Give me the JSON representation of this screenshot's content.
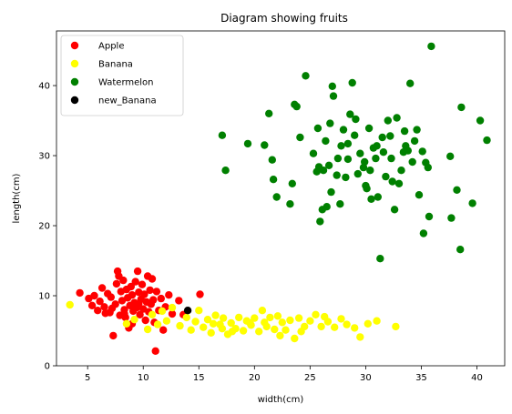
{
  "chart_data": {
    "type": "scatter",
    "title": "Diagram showing fruits",
    "xlabel": "width(cm)",
    "ylabel": "length(cm)",
    "xlim": [
      2.2,
      42.5
    ],
    "ylim": [
      0,
      47.8
    ],
    "xticks": [
      5,
      10,
      15,
      20,
      25,
      30,
      35,
      40
    ],
    "yticks": [
      0,
      10,
      20,
      30,
      40
    ],
    "grid": false,
    "legend_position": "top-left",
    "series": [
      {
        "name": "Apple",
        "color": "#ff0000",
        "points": [
          [
            4.3,
            10.4
          ],
          [
            5.1,
            9.6
          ],
          [
            5.4,
            8.6
          ],
          [
            5.6,
            10.0
          ],
          [
            5.9,
            7.9
          ],
          [
            6.1,
            9.2
          ],
          [
            6.3,
            11.1
          ],
          [
            6.5,
            8.4
          ],
          [
            6.8,
            10.3
          ],
          [
            7.0,
            7.6
          ],
          [
            7.1,
            9.8
          ],
          [
            7.3,
            4.3
          ],
          [
            7.5,
            8.8
          ],
          [
            7.6,
            11.7
          ],
          [
            7.7,
            13.5
          ],
          [
            7.8,
            12.8
          ],
          [
            7.9,
            7.2
          ],
          [
            8.0,
            10.6
          ],
          [
            8.1,
            9.3
          ],
          [
            8.2,
            12.2
          ],
          [
            8.3,
            8.0
          ],
          [
            8.4,
            6.9
          ],
          [
            8.5,
            10.9
          ],
          [
            8.6,
            9.7
          ],
          [
            8.7,
            5.4
          ],
          [
            8.8,
            8.6
          ],
          [
            8.9,
            11.3
          ],
          [
            9.0,
            10.1
          ],
          [
            9.1,
            7.8
          ],
          [
            9.2,
            9.0
          ],
          [
            9.3,
            12.0
          ],
          [
            9.4,
            8.3
          ],
          [
            9.5,
            13.5
          ],
          [
            9.6,
            10.5
          ],
          [
            9.7,
            7.3
          ],
          [
            9.8,
            9.5
          ],
          [
            9.9,
            11.6
          ],
          [
            10.0,
            8.1
          ],
          [
            10.1,
            10.2
          ],
          [
            10.2,
            6.5
          ],
          [
            10.3,
            9.1
          ],
          [
            10.4,
            12.8
          ],
          [
            10.5,
            7.7
          ],
          [
            10.6,
            10.8
          ],
          [
            10.7,
            8.8
          ],
          [
            10.8,
            12.4
          ],
          [
            10.9,
            9.4
          ],
          [
            11.0,
            6.2
          ],
          [
            11.1,
            2.1
          ],
          [
            11.2,
            10.6
          ],
          [
            11.4,
            7.9
          ],
          [
            11.6,
            9.6
          ],
          [
            11.8,
            5.1
          ],
          [
            12.0,
            8.4
          ],
          [
            12.3,
            10.1
          ],
          [
            12.6,
            7.4
          ],
          [
            13.2,
            9.3
          ],
          [
            13.6,
            7.3
          ],
          [
            15.1,
            10.2
          ],
          [
            9.0,
            6.0
          ],
          [
            8.3,
            7.4
          ],
          [
            6.6,
            7.5
          ],
          [
            7.2,
            8.2
          ],
          [
            9.6,
            8.9
          ]
        ]
      },
      {
        "name": "Banana",
        "color": "#ffff00",
        "points": [
          [
            3.4,
            8.7
          ],
          [
            8.5,
            6.0
          ],
          [
            9.2,
            6.6
          ],
          [
            10.4,
            5.2
          ],
          [
            10.8,
            7.3
          ],
          [
            11.3,
            5.9
          ],
          [
            11.7,
            7.8
          ],
          [
            12.1,
            6.4
          ],
          [
            12.6,
            8.3
          ],
          [
            13.3,
            5.7
          ],
          [
            13.9,
            6.9
          ],
          [
            14.3,
            5.1
          ],
          [
            14.7,
            6.3
          ],
          [
            15.0,
            7.9
          ],
          [
            15.4,
            5.5
          ],
          [
            15.8,
            6.6
          ],
          [
            16.1,
            4.7
          ],
          [
            16.5,
            7.2
          ],
          [
            16.9,
            5.9
          ],
          [
            17.2,
            6.8
          ],
          [
            17.6,
            4.5
          ],
          [
            17.9,
            6.1
          ],
          [
            18.3,
            5.3
          ],
          [
            18.6,
            6.9
          ],
          [
            19.0,
            5.0
          ],
          [
            19.3,
            6.4
          ],
          [
            19.7,
            5.8
          ],
          [
            20.0,
            6.8
          ],
          [
            20.4,
            4.9
          ],
          [
            20.7,
            7.9
          ],
          [
            21.1,
            5.6
          ],
          [
            21.4,
            6.9
          ],
          [
            21.8,
            5.2
          ],
          [
            22.1,
            7.1
          ],
          [
            22.5,
            6.2
          ],
          [
            22.8,
            5.1
          ],
          [
            23.2,
            6.5
          ],
          [
            23.6,
            3.9
          ],
          [
            24.0,
            6.8
          ],
          [
            24.5,
            5.6
          ],
          [
            25.0,
            6.4
          ],
          [
            25.5,
            7.3
          ],
          [
            26.0,
            5.6
          ],
          [
            26.6,
            6.3
          ],
          [
            27.2,
            5.5
          ],
          [
            27.8,
            6.7
          ],
          [
            28.3,
            5.9
          ],
          [
            29.0,
            5.4
          ],
          [
            29.5,
            4.1
          ],
          [
            30.2,
            6.0
          ],
          [
            31.0,
            6.4
          ],
          [
            32.7,
            5.6
          ],
          [
            22.3,
            4.3
          ],
          [
            19.6,
            6.1
          ],
          [
            17.1,
            5.3
          ],
          [
            16.3,
            6.0
          ],
          [
            18.0,
            4.9
          ],
          [
            20.9,
            6.2
          ],
          [
            24.2,
            4.9
          ],
          [
            26.3,
            7.0
          ]
        ]
      },
      {
        "name": "Watermelon",
        "color": "#008000",
        "points": [
          [
            17.1,
            32.9
          ],
          [
            17.4,
            27.9
          ],
          [
            19.4,
            31.7
          ],
          [
            20.9,
            31.5
          ],
          [
            21.3,
            36.0
          ],
          [
            21.6,
            29.4
          ],
          [
            21.7,
            26.6
          ],
          [
            22.0,
            24.1
          ],
          [
            23.2,
            23.1
          ],
          [
            23.4,
            26.0
          ],
          [
            23.6,
            37.3
          ],
          [
            23.8,
            37.0
          ],
          [
            24.1,
            32.6
          ],
          [
            24.6,
            41.4
          ],
          [
            25.3,
            30.3
          ],
          [
            25.6,
            27.7
          ],
          [
            25.8,
            28.4
          ],
          [
            25.9,
            20.6
          ],
          [
            26.1,
            22.3
          ],
          [
            26.2,
            27.9
          ],
          [
            26.4,
            32.1
          ],
          [
            26.5,
            22.7
          ],
          [
            26.8,
            34.6
          ],
          [
            26.9,
            24.8
          ],
          [
            27.0,
            39.9
          ],
          [
            27.1,
            38.5
          ],
          [
            27.4,
            27.2
          ],
          [
            27.5,
            29.6
          ],
          [
            27.7,
            23.1
          ],
          [
            27.8,
            31.4
          ],
          [
            28.0,
            33.7
          ],
          [
            28.2,
            26.9
          ],
          [
            28.4,
            29.5
          ],
          [
            28.6,
            35.9
          ],
          [
            28.8,
            40.4
          ],
          [
            29.0,
            32.9
          ],
          [
            29.1,
            35.2
          ],
          [
            29.3,
            27.4
          ],
          [
            29.5,
            30.3
          ],
          [
            29.8,
            28.3
          ],
          [
            30.0,
            25.7
          ],
          [
            30.1,
            25.3
          ],
          [
            30.3,
            33.9
          ],
          [
            30.4,
            27.9
          ],
          [
            30.5,
            23.8
          ],
          [
            30.7,
            31.1
          ],
          [
            30.9,
            29.6
          ],
          [
            31.0,
            31.4
          ],
          [
            31.1,
            24.1
          ],
          [
            31.3,
            15.3
          ],
          [
            31.5,
            32.6
          ],
          [
            31.6,
            30.5
          ],
          [
            31.8,
            27.0
          ],
          [
            32.0,
            35.0
          ],
          [
            32.2,
            32.8
          ],
          [
            32.4,
            26.3
          ],
          [
            32.6,
            22.3
          ],
          [
            32.8,
            35.4
          ],
          [
            33.0,
            26.0
          ],
          [
            33.2,
            27.9
          ],
          [
            33.4,
            30.5
          ],
          [
            33.6,
            31.4
          ],
          [
            33.8,
            30.7
          ],
          [
            34.0,
            40.3
          ],
          [
            34.2,
            29.1
          ],
          [
            34.4,
            32.1
          ],
          [
            34.6,
            33.7
          ],
          [
            34.8,
            24.4
          ],
          [
            35.1,
            30.6
          ],
          [
            35.2,
            18.9
          ],
          [
            35.4,
            29.0
          ],
          [
            35.6,
            28.3
          ],
          [
            35.7,
            21.3
          ],
          [
            35.9,
            45.6
          ],
          [
            37.6,
            29.9
          ],
          [
            37.7,
            21.1
          ],
          [
            38.2,
            25.1
          ],
          [
            38.5,
            16.6
          ],
          [
            38.6,
            36.9
          ],
          [
            39.6,
            23.2
          ],
          [
            40.3,
            35.0
          ],
          [
            40.9,
            32.2
          ],
          [
            28.4,
            31.7
          ],
          [
            29.9,
            29.1
          ],
          [
            32.3,
            29.6
          ],
          [
            25.7,
            33.9
          ],
          [
            26.7,
            28.6
          ],
          [
            33.5,
            33.5
          ]
        ]
      },
      {
        "name": "new_Banana",
        "color": "#000000",
        "points": [
          [
            14.0,
            7.9
          ]
        ]
      }
    ]
  }
}
